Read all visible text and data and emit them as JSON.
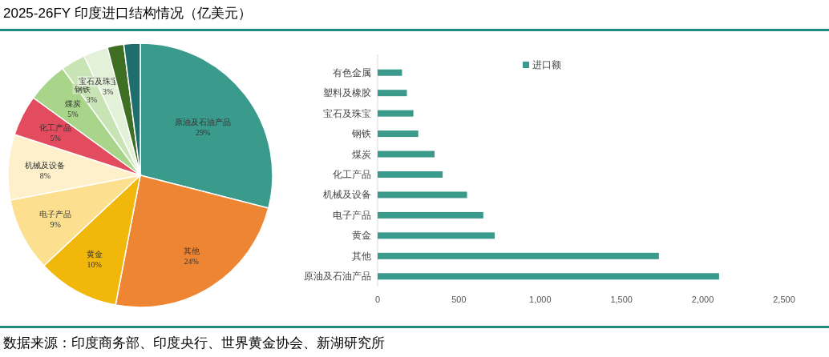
{
  "chart_data": [
    {
      "type": "pie",
      "title": "2025-26FY 印度进口结构情况（亿美元）",
      "categories": [
        "原油及石油产品",
        "其他",
        "黄金",
        "电子产品",
        "机械及设备",
        "化工产品",
        "煤炭",
        "钢铁",
        "宝石及珠宝",
        null,
        null
      ],
      "values": [
        29,
        24,
        10,
        9,
        8,
        5,
        5,
        3,
        3,
        2,
        2
      ],
      "colors": [
        "#3a9a8b",
        "#ee8532",
        "#f1b70b",
        "#fde08f",
        "#fdf0cb",
        "#e34b5e",
        "#a8d58a",
        "#c9e4b4",
        "#e4f1d9",
        "#3f6f23",
        "#1e6e6d"
      ],
      "value_labels": [
        "29%",
        "24%",
        "10%",
        "9%",
        "8%",
        "5%",
        "5%",
        "3%",
        "3%",
        null,
        null
      ]
    },
    {
      "type": "bar",
      "orientation": "horizontal",
      "categories": [
        "有色金属",
        "塑料及橡胶",
        "宝石及珠宝",
        "钢铁",
        "煤炭",
        "化工产品",
        "机械及设备",
        "电子产品",
        "黄金",
        "其他",
        "原油及石油产品"
      ],
      "series": [
        {
          "name": "进口额",
          "color": "#3a9a8b",
          "values": [
            150,
            180,
            220,
            250,
            350,
            400,
            550,
            650,
            720,
            1730,
            2100
          ]
        }
      ],
      "xlim": [
        0,
        2500
      ],
      "xticks": [
        0,
        500,
        {
          "value": 1000,
          "label": "1,000"
        },
        {
          "value": 1500,
          "label": "1,500"
        },
        {
          "value": 2000,
          "label": "2,000"
        },
        {
          "value": 2500,
          "label": "2,500"
        }
      ],
      "legend": "top",
      "grid": false,
      "annotations": [
        "数据来源：印度商务部、印度央行、世界黄金协会、新湖研究所"
      ]
    }
  ]
}
